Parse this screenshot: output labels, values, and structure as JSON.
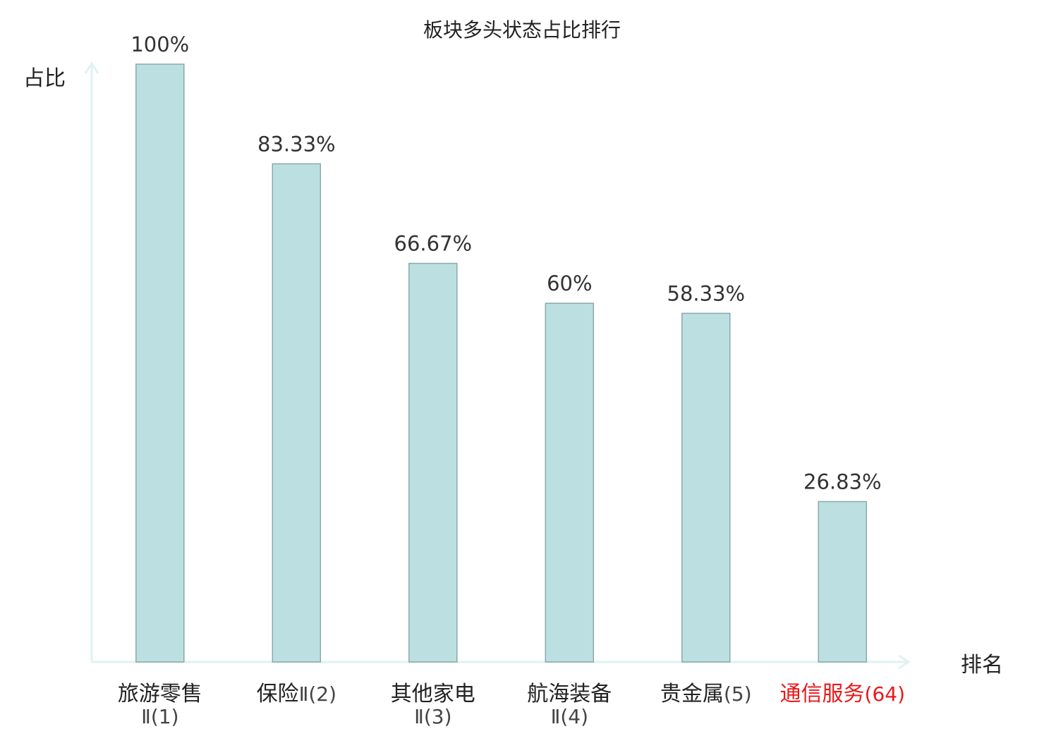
{
  "chart_data": {
    "type": "bar",
    "title": "板块多头状态占比排行",
    "ylabel": "占比",
    "xlabel": "排名",
    "ylim": [
      0,
      100
    ],
    "grid": false,
    "categories": [
      {
        "name": "旅游零售",
        "suffix": "Ⅱ(1)",
        "wrap": true,
        "highlight": false
      },
      {
        "name": "保险",
        "suffix": "Ⅱ(2)",
        "wrap": false,
        "highlight": false
      },
      {
        "name": "其他家电",
        "suffix": "Ⅱ(3)",
        "wrap": true,
        "highlight": false
      },
      {
        "name": "航海装备",
        "suffix": "Ⅱ(4)",
        "wrap": true,
        "highlight": false
      },
      {
        "name": "贵金属",
        "suffix": "(5)",
        "wrap": false,
        "highlight": false
      },
      {
        "name": "通信服务",
        "suffix": "(64)",
        "wrap": false,
        "highlight": true
      }
    ],
    "values": [
      100,
      83.33,
      66.67,
      60,
      58.33,
      26.83
    ],
    "value_labels": [
      "100%",
      "83.33%",
      "66.67%",
      "60%",
      "58.33%",
      "26.83%"
    ],
    "colors": {
      "bar_fill": "#bce0e2",
      "bar_stroke": "#8aa8ab",
      "axis": "#e0f2f0",
      "highlight": "#e8191a",
      "text": "#222222",
      "value_text": "#333333"
    }
  }
}
